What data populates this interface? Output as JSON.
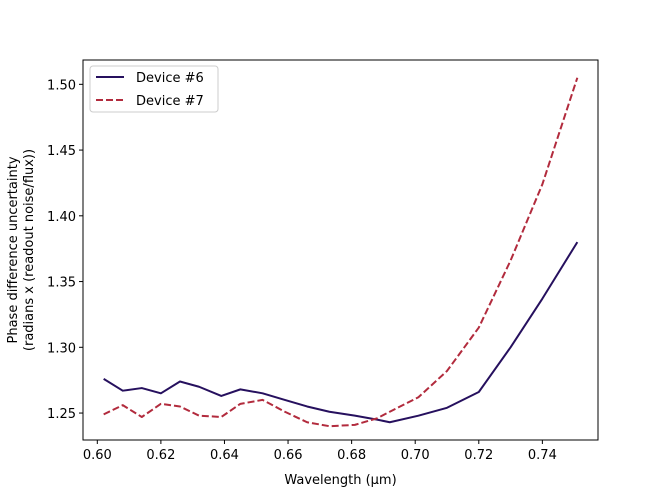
{
  "chart_data": {
    "type": "line",
    "title": "",
    "xlabel": "Wavelength (μm)",
    "ylabel_lines": [
      "Phase difference uncertainty",
      "(radians x (readout noise/flux))"
    ],
    "xlim": [
      0.5955,
      0.7575
    ],
    "ylim": [
      1.2295,
      1.5185
    ],
    "xticks": [
      0.6,
      0.62,
      0.64,
      0.66,
      0.68,
      0.7,
      0.72,
      0.74
    ],
    "xtick_labels": [
      "0.60",
      "0.62",
      "0.64",
      "0.66",
      "0.68",
      "0.70",
      "0.72",
      "0.74"
    ],
    "yticks": [
      1.25,
      1.3,
      1.35,
      1.4,
      1.45,
      1.5
    ],
    "ytick_labels": [
      "1.25",
      "1.30",
      "1.35",
      "1.40",
      "1.45",
      "1.50"
    ],
    "grid": false,
    "legend_position": "top-left",
    "series": [
      {
        "name": "Device #6",
        "color": "#26105e",
        "dash": "solid",
        "x": [
          0.602,
          0.608,
          0.614,
          0.62,
          0.626,
          0.632,
          0.639,
          0.645,
          0.652,
          0.659,
          0.666,
          0.673,
          0.681,
          0.688,
          0.692,
          0.701,
          0.71,
          0.72,
          0.73,
          0.74,
          0.751
        ],
        "y": [
          1.276,
          1.267,
          1.269,
          1.265,
          1.274,
          1.27,
          1.263,
          1.268,
          1.265,
          1.26,
          1.255,
          1.251,
          1.248,
          1.245,
          1.243,
          1.248,
          1.254,
          1.266,
          1.3,
          1.337,
          1.38
        ]
      },
      {
        "name": "Device #7",
        "color": "#b22b3d",
        "dash": "dashed",
        "x": [
          0.602,
          0.608,
          0.614,
          0.62,
          0.626,
          0.632,
          0.639,
          0.645,
          0.652,
          0.659,
          0.666,
          0.673,
          0.681,
          0.688,
          0.692,
          0.701,
          0.71,
          0.72,
          0.73,
          0.74,
          0.751
        ],
        "y": [
          1.249,
          1.256,
          1.247,
          1.257,
          1.255,
          1.248,
          1.247,
          1.257,
          1.26,
          1.251,
          1.243,
          1.24,
          1.241,
          1.246,
          1.251,
          1.262,
          1.282,
          1.315,
          1.366,
          1.424,
          1.505
        ]
      }
    ]
  }
}
